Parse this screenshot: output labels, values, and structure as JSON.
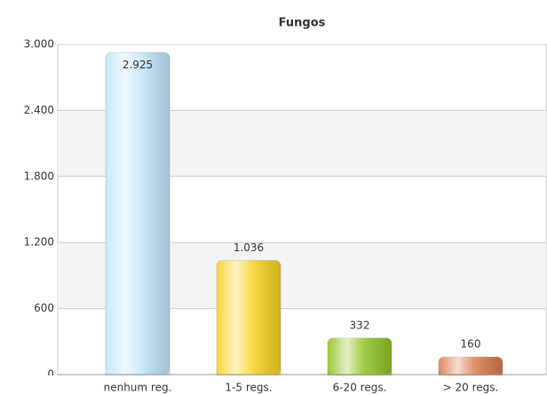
{
  "chart_data": {
    "type": "bar",
    "title": "Fungos",
    "categories": [
      "nenhum reg.",
      "1-5 regs.",
      "6-20 regs.",
      "> 20 regs."
    ],
    "values": [
      2925,
      1036,
      332,
      160
    ],
    "value_labels": [
      "2.925",
      "1.036",
      "332",
      "160"
    ],
    "colors": [
      "#bfe6fa",
      "#f7d21e",
      "#8fc31f",
      "#d9794a"
    ],
    "ylim": [
      0,
      3000
    ],
    "yticks": [
      0,
      600,
      {
        "value": 1200,
        "label": "1.200"
      },
      {
        "value": 1800,
        "label": "1.800"
      },
      {
        "value": 2400,
        "label": "2.400"
      },
      {
        "value": 3000,
        "label": "3.000"
      }
    ],
    "grid": true
  }
}
